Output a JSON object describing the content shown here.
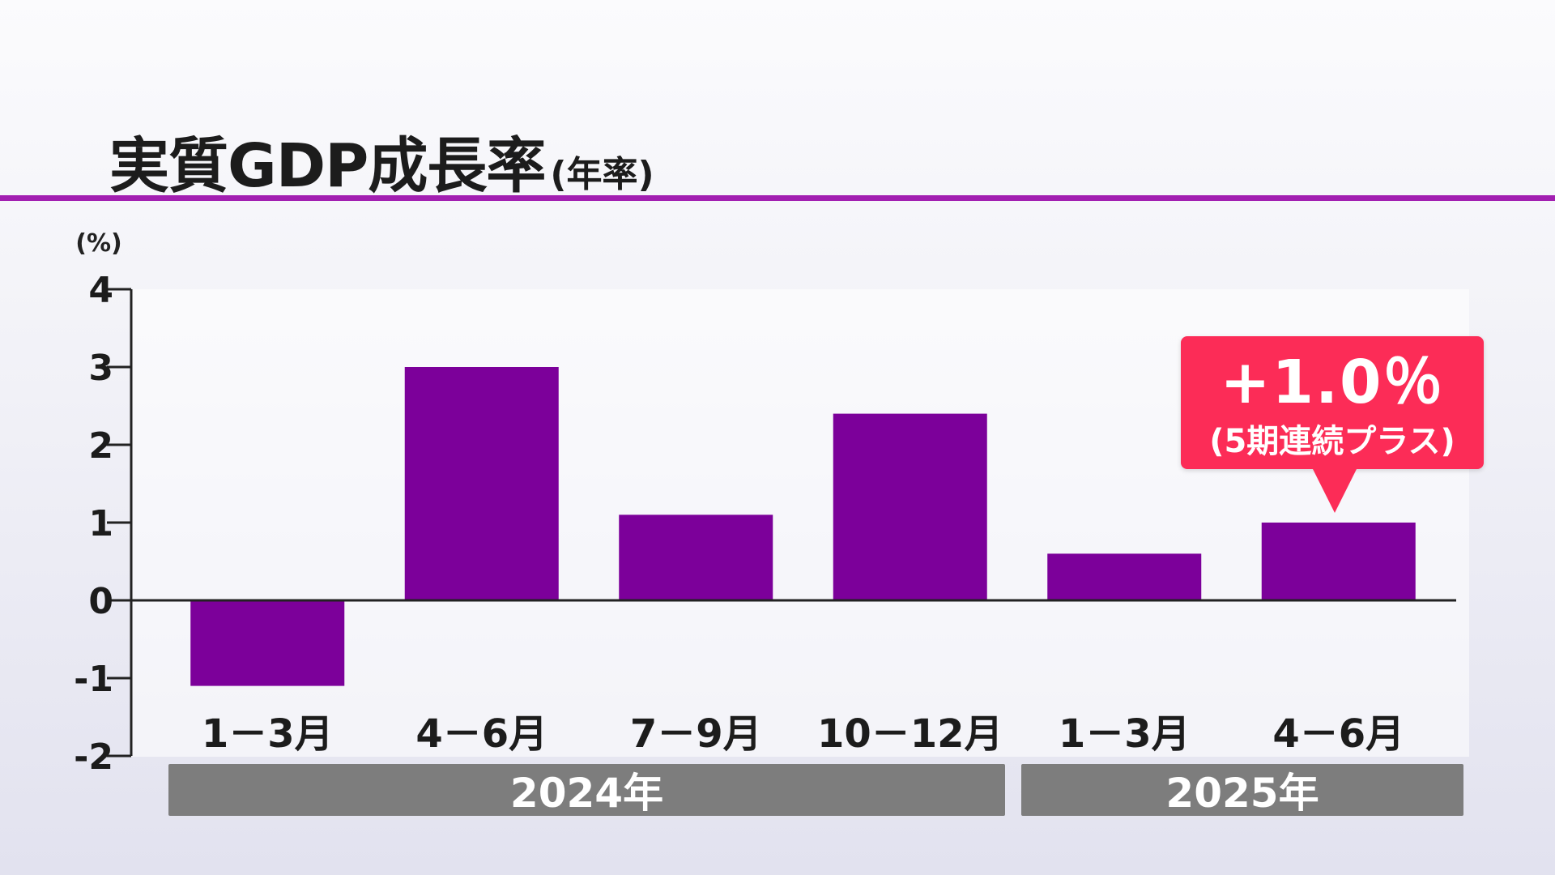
{
  "title": {
    "main": "実質GDP成長率",
    "sub": "(年率)"
  },
  "chart_data": {
    "type": "bar",
    "unit_label": "(%)",
    "categories": [
      "1－3月",
      "4－6月",
      "7－9月",
      "10－12月",
      "1－3月",
      "4－6月"
    ],
    "values": [
      -1.1,
      3.0,
      1.1,
      2.4,
      0.6,
      1.0
    ],
    "ylim": [
      -2,
      4
    ],
    "yticks": [
      "4",
      "3",
      "2",
      "1",
      "0",
      "-1",
      "-2"
    ],
    "bar_color": "#7c009a",
    "grid": false,
    "year_groups": [
      {
        "label": "2024年"
      },
      {
        "label": "2025年"
      }
    ],
    "annotation": {
      "value": "+1.0％",
      "note": "(5期連続プラス)",
      "color": "#fc2c57"
    }
  }
}
